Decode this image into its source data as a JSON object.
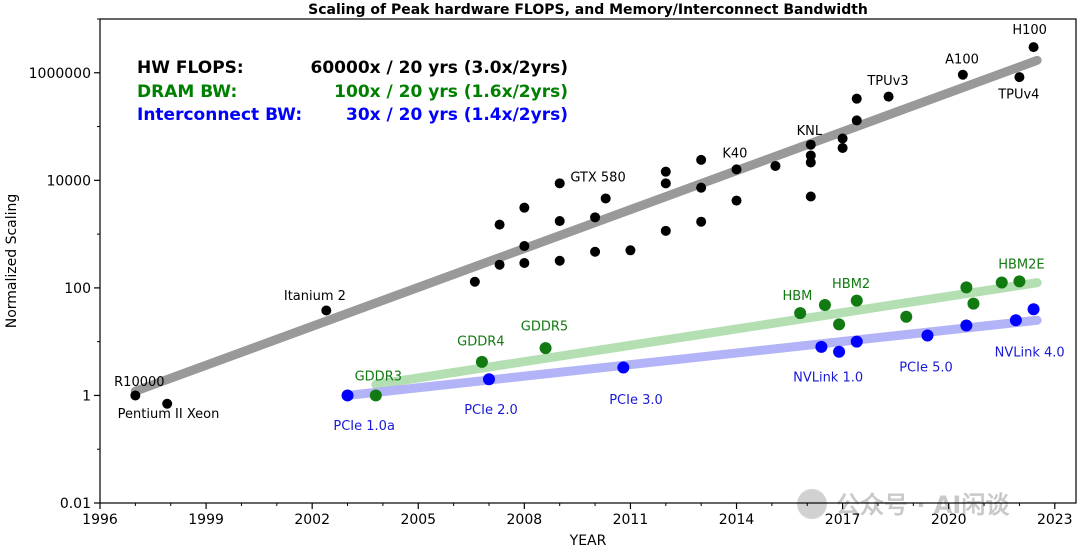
{
  "chart_data": {
    "type": "scatter",
    "title": "Scaling of Peak hardware FLOPS, and Memory/Interconnect Bandwidth",
    "xlabel": "YEAR",
    "ylabel": "Normalized Scaling",
    "xlim": [
      1996,
      2023.6
    ],
    "ylim": [
      0.01,
      10000000
    ],
    "yscale": "log",
    "grid": false,
    "x_ticks": [
      1996,
      1999,
      2002,
      2005,
      2008,
      2011,
      2014,
      2017,
      2020,
      2023
    ],
    "y_ticks": [
      {
        "value": 1000000,
        "label": "1000000"
      },
      {
        "value": 10000,
        "label": "10000"
      },
      {
        "value": 100,
        "label": "100"
      },
      {
        "value": 1,
        "label": "1"
      },
      {
        "value": 0.01,
        "label": "0.01"
      }
    ],
    "legend_text": [
      {
        "name": "HW FLOPS:",
        "value": "60000x / 20 yrs (3.0x/2yrs)",
        "color": "#000000"
      },
      {
        "name": "DRAM BW:",
        "value": "100x / 20 yrs (1.6x/2yrs)",
        "color": "#008000"
      },
      {
        "name": "Interconnect BW:",
        "value": "30x / 20 yrs (1.4x/2yrs)",
        "color": "#0000ff"
      }
    ],
    "colors": {
      "flops": "#000000",
      "dram": "#117a11",
      "interconnect": "#0000ff",
      "flops_trend": "#999999",
      "dram_trend": "#b3dfb3",
      "interconnect_trend": "#b3b3f7"
    },
    "series": [
      {
        "name": "HW FLOPS",
        "points": [
          {
            "x": 1997.0,
            "y": 1
          },
          {
            "x": 1997.9,
            "y": 0.7
          },
          {
            "x": 2002.4,
            "y": 38
          },
          {
            "x": 2006.6,
            "y": 130
          },
          {
            "x": 2007.3,
            "y": 1500
          },
          {
            "x": 2007.3,
            "y": 270
          },
          {
            "x": 2008.0,
            "y": 3100
          },
          {
            "x": 2008.0,
            "y": 600
          },
          {
            "x": 2008.0,
            "y": 290
          },
          {
            "x": 2009.0,
            "y": 8800
          },
          {
            "x": 2009.0,
            "y": 1750
          },
          {
            "x": 2009.0,
            "y": 320
          },
          {
            "x": 2010.0,
            "y": 2050
          },
          {
            "x": 2010.0,
            "y": 470
          },
          {
            "x": 2010.3,
            "y": 4600
          },
          {
            "x": 2011.0,
            "y": 500
          },
          {
            "x": 2012.0,
            "y": 14500
          },
          {
            "x": 2012.0,
            "y": 8800
          },
          {
            "x": 2012.0,
            "y": 1150
          },
          {
            "x": 2013.0,
            "y": 24000
          },
          {
            "x": 2013.0,
            "y": 7300
          },
          {
            "x": 2013.0,
            "y": 1700
          },
          {
            "x": 2014.0,
            "y": 16000
          },
          {
            "x": 2014.0,
            "y": 4200
          },
          {
            "x": 2015.1,
            "y": 18500
          },
          {
            "x": 2016.1,
            "y": 46000
          },
          {
            "x": 2016.1,
            "y": 29000
          },
          {
            "x": 2016.1,
            "y": 21500
          },
          {
            "x": 2016.1,
            "y": 5000
          },
          {
            "x": 2017.0,
            "y": 60000
          },
          {
            "x": 2017.0,
            "y": 40000
          },
          {
            "x": 2017.4,
            "y": 130000
          },
          {
            "x": 2017.4,
            "y": 330000
          },
          {
            "x": 2018.3,
            "y": 360000
          },
          {
            "x": 2020.4,
            "y": 920000
          },
          {
            "x": 2022.4,
            "y": 3000000
          },
          {
            "x": 2022.0,
            "y": 830000
          }
        ],
        "trend": [
          {
            "x": 1997.0,
            "y": 1.2
          },
          {
            "x": 2022.5,
            "y": 1700000
          }
        ]
      },
      {
        "name": "DRAM BW",
        "points": [
          {
            "x": 2003.8,
            "y": 1
          },
          {
            "x": 2006.8,
            "y": 4.2
          },
          {
            "x": 2008.6,
            "y": 7.6
          },
          {
            "x": 2015.8,
            "y": 34
          },
          {
            "x": 2016.5,
            "y": 48
          },
          {
            "x": 2016.9,
            "y": 21
          },
          {
            "x": 2017.4,
            "y": 58
          },
          {
            "x": 2018.8,
            "y": 29
          },
          {
            "x": 2020.5,
            "y": 102
          },
          {
            "x": 2020.7,
            "y": 51
          },
          {
            "x": 2021.5,
            "y": 126
          },
          {
            "x": 2022.0,
            "y": 132
          }
        ],
        "trend": [
          {
            "x": 2003.8,
            "y": 1.6
          },
          {
            "x": 2022.5,
            "y": 125
          }
        ]
      },
      {
        "name": "Interconnect BW",
        "points": [
          {
            "x": 2003.0,
            "y": 1
          },
          {
            "x": 2007.0,
            "y": 2.0
          },
          {
            "x": 2010.8,
            "y": 3.3
          },
          {
            "x": 2016.4,
            "y": 8.0
          },
          {
            "x": 2016.9,
            "y": 6.5
          },
          {
            "x": 2017.4,
            "y": 10
          },
          {
            "x": 2019.4,
            "y": 13
          },
          {
            "x": 2020.5,
            "y": 20
          },
          {
            "x": 2021.9,
            "y": 25
          },
          {
            "x": 2022.4,
            "y": 40
          }
        ],
        "trend": [
          {
            "x": 2003.0,
            "y": 1.0
          },
          {
            "x": 2022.5,
            "y": 25
          }
        ]
      }
    ],
    "annotations": [
      {
        "text": "R10000",
        "x": 1996.4,
        "y": 1.5,
        "color": "#000000"
      },
      {
        "text": "Pentium II Xeon",
        "x": 1996.5,
        "y": 0.38,
        "color": "#000000"
      },
      {
        "text": "Itanium 2",
        "x": 2001.2,
        "y": 60,
        "color": "#000000"
      },
      {
        "text": "GTX 580",
        "x": 2009.3,
        "y": 9500,
        "color": "#000000"
      },
      {
        "text": "K40",
        "x": 2013.6,
        "y": 26500,
        "color": "#000000"
      },
      {
        "text": "KNL",
        "x": 2015.7,
        "y": 70000,
        "color": "#000000"
      },
      {
        "text": "TPUv3",
        "x": 2017.7,
        "y": 590000,
        "color": "#000000"
      },
      {
        "text": "A100",
        "x": 2019.9,
        "y": 1500000,
        "color": "#000000"
      },
      {
        "text": "H100",
        "x": 2021.8,
        "y": 5300000,
        "color": "#000000"
      },
      {
        "text": "TPUv4",
        "x": 2021.4,
        "y": 330000,
        "color": "#000000"
      },
      {
        "text": "GDDR3",
        "x": 2003.2,
        "y": 1.9,
        "color": "#117a11"
      },
      {
        "text": "GDDR4",
        "x": 2006.1,
        "y": 8.5,
        "color": "#117a11"
      },
      {
        "text": "GDDR5",
        "x": 2007.9,
        "y": 16,
        "color": "#117a11"
      },
      {
        "text": "HBM",
        "x": 2015.3,
        "y": 60,
        "color": "#117a11"
      },
      {
        "text": "HBM2",
        "x": 2016.7,
        "y": 100,
        "color": "#117a11"
      },
      {
        "text": "HBM2E",
        "x": 2021.4,
        "y": 230,
        "color": "#117a11"
      },
      {
        "text": "PCIe 1.0a",
        "x": 2002.6,
        "y": 0.23,
        "color": "#1a1ad6"
      },
      {
        "text": "PCIe 2.0",
        "x": 2006.3,
        "y": 0.45,
        "color": "#1a1ad6"
      },
      {
        "text": "PCIe 3.0",
        "x": 2010.4,
        "y": 0.7,
        "color": "#1a1ad6"
      },
      {
        "text": "NVLink 1.0",
        "x": 2015.6,
        "y": 1.8,
        "color": "#1a1ad6"
      },
      {
        "text": "PCIe 5.0",
        "x": 2018.6,
        "y": 2.8,
        "color": "#1a1ad6"
      },
      {
        "text": "NVLink 4.0",
        "x": 2021.3,
        "y": 5.3,
        "color": "#1a1ad6"
      }
    ],
    "watermark": "公众号 · AI闲谈"
  }
}
